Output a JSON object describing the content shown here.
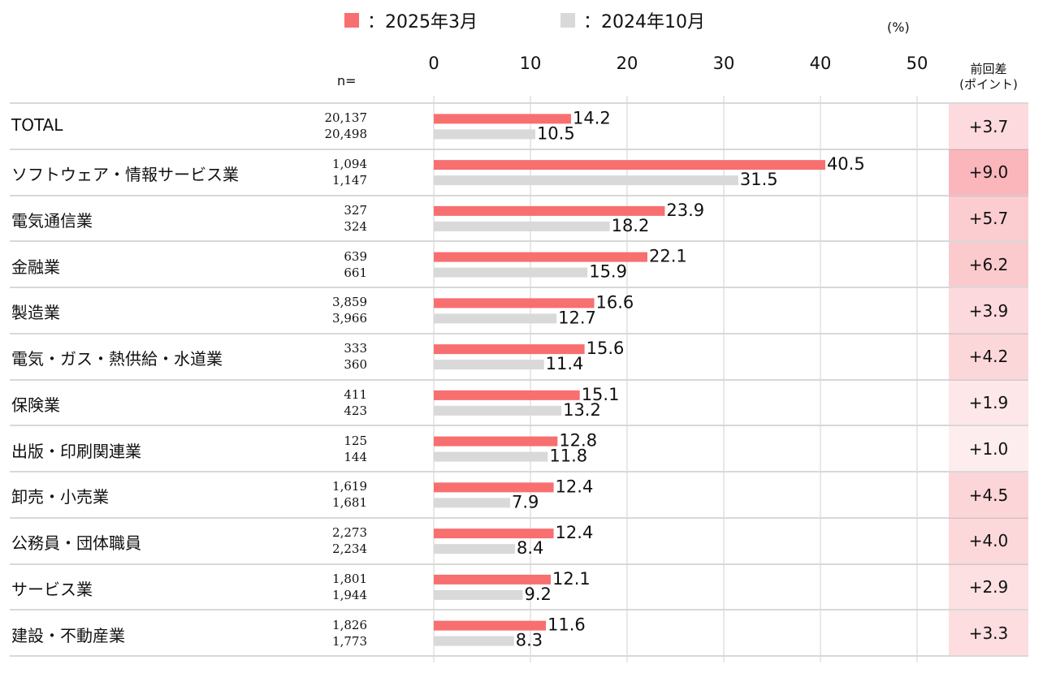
{
  "legend": [
    {
      "label": "：2025年3月",
      "color": "#f86f6f"
    },
    {
      "label": "：2024年10月",
      "color": "#d9d9d9"
    }
  ],
  "unit_label": "(%)",
  "n_header": "n=",
  "diff_header": [
    "前回差",
    "(ポイント)"
  ],
  "chart_data": {
    "type": "bar",
    "orientation": "horizontal",
    "xlim": [
      0,
      50
    ],
    "ticks": [
      0,
      10,
      20,
      30,
      40,
      50
    ],
    "grid": true,
    "categories": [
      "TOTAL",
      "ソフトウェア・情報サービス業",
      "電気通信業",
      "金融業",
      "製造業",
      "電気・ガス・熱供給・水道業",
      "保険業",
      "出版・印刷関連業",
      "卸売・小売業",
      "公務員・団体職員",
      "サービス業",
      "建設・不動産業"
    ],
    "series": [
      {
        "name": "2025年3月",
        "color": "#f86f6f",
        "values": [
          14.2,
          40.5,
          23.9,
          22.1,
          16.6,
          15.6,
          15.1,
          12.8,
          12.4,
          12.4,
          12.1,
          11.6
        ],
        "n": [
          "20,137",
          "1,094",
          "327",
          "639",
          "3,859",
          "333",
          "411",
          "125",
          "1,619",
          "2,273",
          "1,801",
          "1,826"
        ]
      },
      {
        "name": "2024年10月",
        "color": "#d9d9d9",
        "values": [
          10.5,
          31.5,
          18.2,
          15.9,
          12.7,
          11.4,
          13.2,
          11.8,
          7.9,
          8.4,
          9.2,
          8.3
        ],
        "n": [
          "20,498",
          "1,147",
          "324",
          "661",
          "3,966",
          "360",
          "423",
          "144",
          "1,681",
          "2,234",
          "1,944",
          "1,773"
        ]
      }
    ],
    "diff": [
      "+3.7",
      "+9.0",
      "+5.7",
      "+6.2",
      "+3.9",
      "+4.2",
      "+1.9",
      "+1.0",
      "+4.5",
      "+4.0",
      "+2.9",
      "+3.3"
    ],
    "diff_values": [
      3.7,
      9.0,
      5.7,
      6.2,
      3.9,
      4.2,
      1.9,
      1.0,
      4.5,
      4.0,
      2.9,
      3.3
    ]
  }
}
